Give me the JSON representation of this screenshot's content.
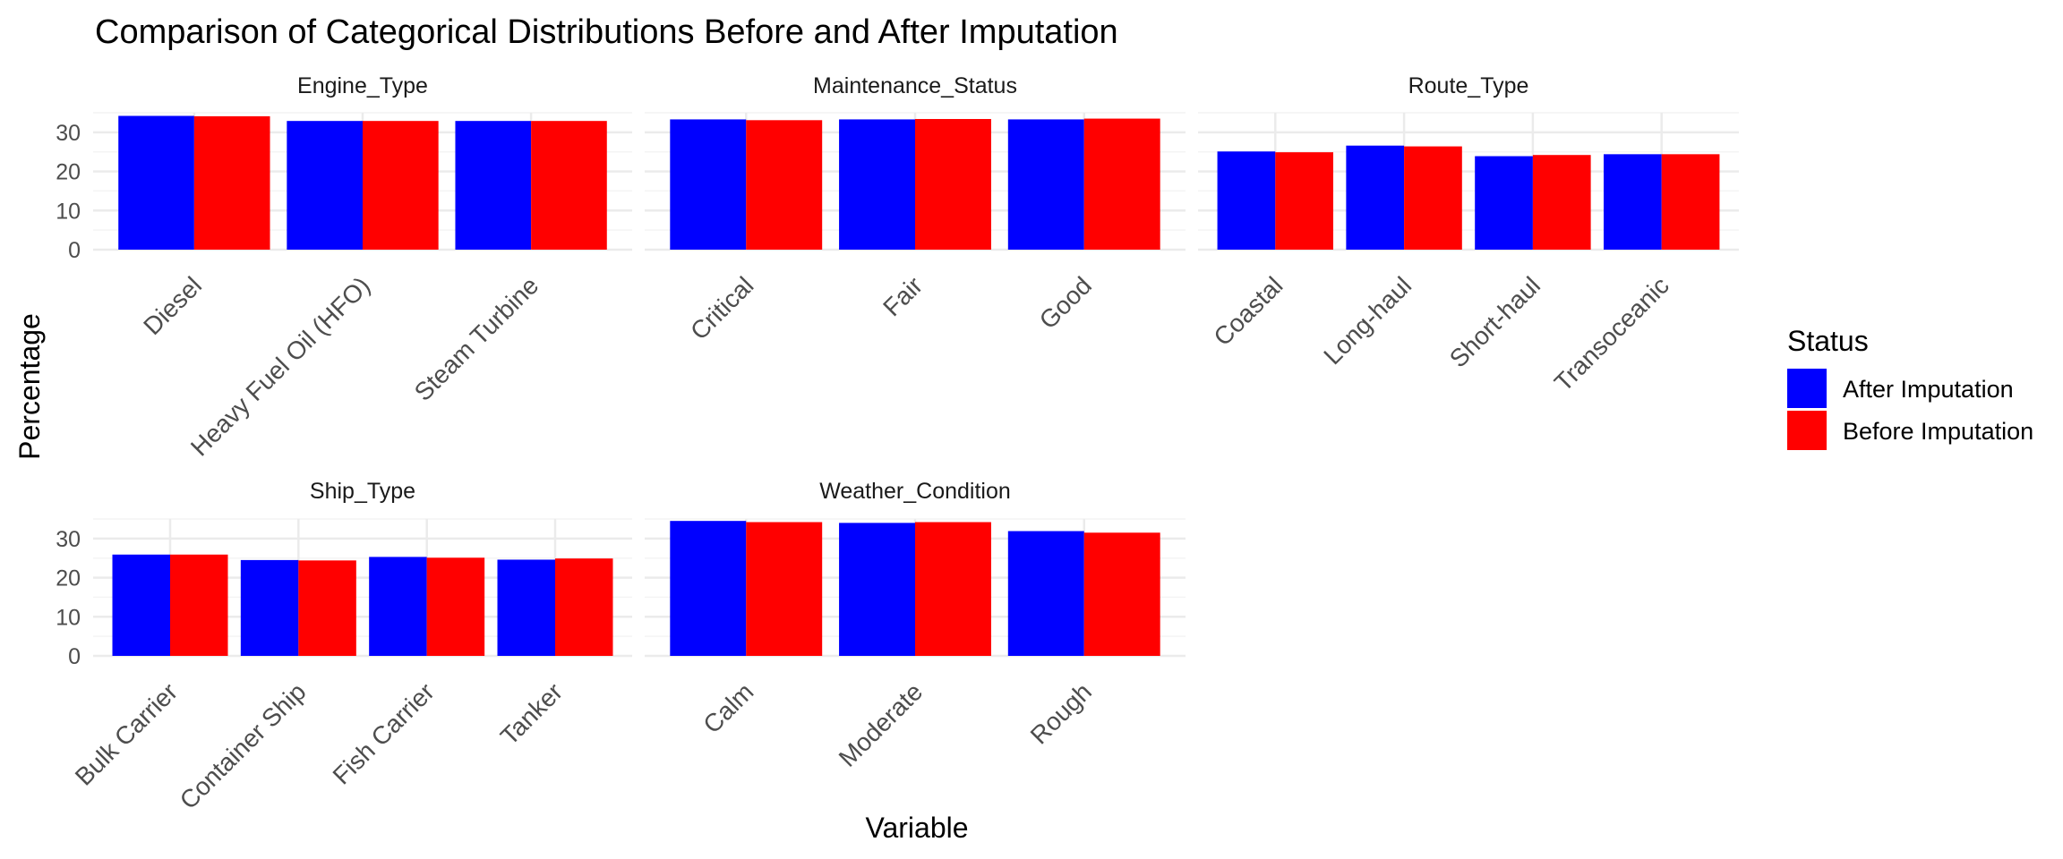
{
  "chart_data": {
    "type": "bar",
    "title": "Comparison of Categorical Distributions Before and After Imputation",
    "xlabel": "Variable",
    "ylabel": "Percentage",
    "ylim": [
      0,
      35
    ],
    "yticks": [
      0,
      10,
      20,
      30
    ],
    "grid": true,
    "legend": {
      "title": "Status",
      "position": "right",
      "entries": [
        {
          "name": "After Imputation",
          "color": "#0000ff"
        },
        {
          "name": "Before Imputation",
          "color": "#ff0000"
        }
      ]
    },
    "series_names": [
      "After Imputation",
      "Before Imputation"
    ],
    "panels": [
      {
        "name": "Engine_Type",
        "categories": [
          "Diesel",
          "Heavy Fuel Oil (HFO)",
          "Steam Turbine"
        ],
        "after": [
          34.2,
          32.9,
          32.9
        ],
        "before": [
          34.1,
          32.9,
          32.9
        ]
      },
      {
        "name": "Maintenance_Status",
        "categories": [
          "Critical",
          "Fair",
          "Good"
        ],
        "after": [
          33.3,
          33.3,
          33.3
        ],
        "before": [
          33.1,
          33.4,
          33.5
        ]
      },
      {
        "name": "Route_Type",
        "categories": [
          "Coastal",
          "Long-haul",
          "Short-haul",
          "Transoceanic"
        ],
        "after": [
          25.1,
          26.6,
          23.9,
          24.4
        ],
        "before": [
          24.9,
          26.4,
          24.2,
          24.4
        ]
      },
      {
        "name": "Ship_Type",
        "categories": [
          "Bulk Carrier",
          "Container Ship",
          "Fish Carrier",
          "Tanker"
        ],
        "after": [
          25.9,
          24.5,
          25.3,
          24.6
        ],
        "before": [
          25.9,
          24.4,
          25.1,
          24.9
        ]
      },
      {
        "name": "Weather_Condition",
        "categories": [
          "Calm",
          "Moderate",
          "Rough"
        ],
        "after": [
          34.5,
          34.0,
          31.9
        ],
        "before": [
          34.2,
          34.2,
          31.5
        ]
      }
    ]
  }
}
